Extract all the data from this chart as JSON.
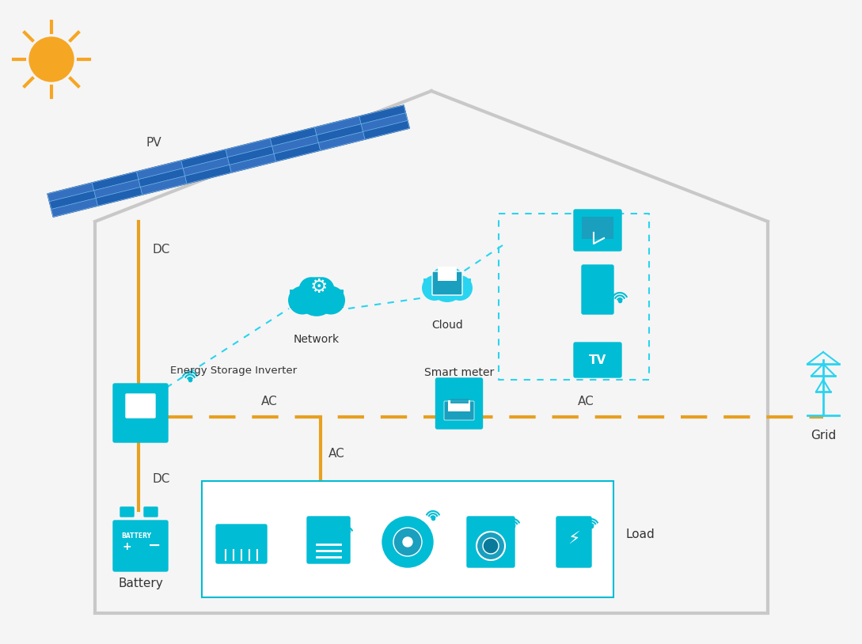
{
  "bg_color": "#f5f5f5",
  "house_color": "#cccccc",
  "solar_blue": "#4db8d4",
  "solar_dark_blue": "#1a6fa3",
  "orange": "#e8a020",
  "cyan": "#00bcd4",
  "light_cyan": "#29d4f0",
  "white": "#ffffff",
  "text_dark": "#333333",
  "dashed_cyan": "#29d4f0",
  "labels": {
    "pv": "PV",
    "dc1": "DC",
    "dc2": "DC",
    "ac1": "AC",
    "ac2": "AC",
    "ac3": "AC",
    "network": "Network",
    "cloud": "Cloud",
    "smart_meter": "Smart meter",
    "energy_storage": "Energy Storage Inverter",
    "battery": "Battery",
    "grid": "Grid",
    "load": "Load"
  }
}
